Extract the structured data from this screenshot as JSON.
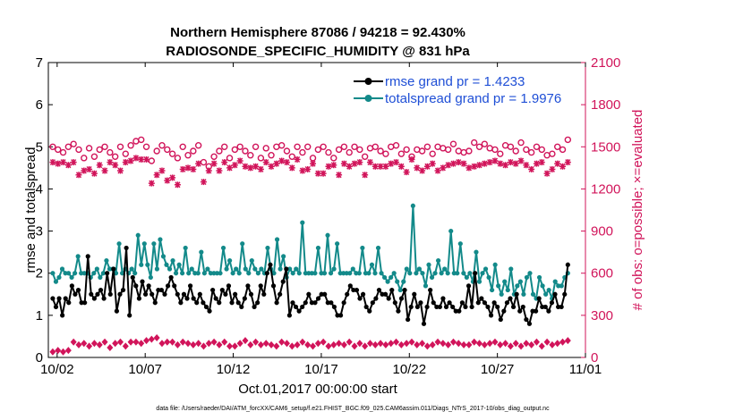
{
  "chart_data": {
    "type": "line",
    "title_line1": "Northern Hemisphere 87086 / 94218 = 92.430%",
    "title_line2": "RADIOSONDE_SPECIFIC_HUMIDITY @ 831 hPa",
    "ylabel_left": "rmse and totalspread",
    "ylabel_right": "# of obs: o=possible; ×=evaluated",
    "xlabel": "Oct.01,2017 00:00:00 start",
    "footer": "data file: /Users/raeder/DAI/ATM_forcXX/CAM6_setup/f.e21.FHIST_BGC.f09_025.CAM6assim.011/Diags_NTrS_2017-10/obs_diag_output.nc",
    "xlim": [
      1.5,
      32
    ],
    "ylim_left": [
      0,
      7
    ],
    "ylim_right": [
      0,
      2100
    ],
    "x_tick_values": [
      2,
      7,
      12,
      17,
      22,
      27,
      32
    ],
    "x_tick_labels": [
      "10/02",
      "10/07",
      "10/12",
      "10/17",
      "10/22",
      "10/27",
      "11/01"
    ],
    "y_left_ticks": [
      "0",
      "1",
      "2",
      "3",
      "4",
      "5",
      "6",
      "7"
    ],
    "y_right_ticks": [
      "0",
      "300",
      "600",
      "900",
      "1200",
      "1500",
      "1800",
      "2100"
    ],
    "colors": {
      "rmse": "#000000",
      "totalspread": "#138a8a",
      "obs": "#d1145a",
      "legend_text": "#1f4fd6",
      "axis": "#000000"
    },
    "series": [
      {
        "name": "rmse grand pr = 1.4233",
        "key": "rmse",
        "axis": "left",
        "values": [
          1.4,
          1.2,
          1.4,
          1.0,
          1.4,
          1.3,
          1.7,
          1.5,
          1.6,
          1.3,
          1.3,
          2.4,
          1.5,
          1.4,
          1.5,
          1.6,
          1.4,
          2.0,
          1.5,
          2.1,
          1.1,
          1.5,
          1.6,
          2.6,
          1.0,
          1.9,
          1.7,
          1.4,
          1.8,
          1.5,
          1.7,
          1.5,
          1.3,
          1.6,
          1.6,
          1.5,
          1.7,
          1.9,
          1.7,
          1.5,
          1.3,
          1.5,
          1.4,
          1.7,
          1.4,
          1.3,
          1.5,
          1.3,
          1.2,
          1.1,
          1.6,
          1.4,
          1.3,
          1.6,
          1.5,
          1.7,
          1.3,
          1.5,
          1.3,
          1.2,
          1.4,
          1.7,
          1.5,
          1.2,
          1.3,
          1.7,
          1.5,
          2.0,
          2.2,
          1.7,
          1.3,
          1.5,
          1.8,
          2.1,
          1.0,
          1.3,
          1.2,
          1.1,
          1.2,
          1.3,
          1.5,
          1.3,
          1.3,
          1.4,
          1.5,
          1.5,
          1.3,
          1.3,
          1.2,
          1.0,
          1.0,
          1.3,
          1.5,
          1.7,
          1.6,
          1.6,
          1.4,
          1.5,
          1.2,
          1.1,
          1.3,
          1.4,
          1.6,
          1.5,
          1.5,
          1.4,
          1.6,
          1.3,
          1.1,
          1.4,
          1.6,
          0.9,
          1.2,
          1.5,
          1.2,
          1.3,
          0.8,
          1.2,
          1.6,
          1.3,
          1.2,
          1.2,
          1.4,
          1.2,
          1.3,
          1.2,
          1.1,
          1.1,
          1.3,
          1.2,
          1.7,
          1.2,
          2.0,
          1.3,
          1.4,
          1.3,
          1.2,
          1.0,
          1.3,
          1.2,
          0.9,
          1.1,
          1.3,
          1.4,
          1.2,
          1.5,
          1.1,
          1.2,
          0.9,
          0.8,
          1.1,
          1.1,
          1.4,
          1.2,
          1.2,
          1.1,
          1.3,
          1.5,
          1.2,
          1.2,
          1.5,
          2.2
        ]
      },
      {
        "name": "totalspread grand pr = 1.9976",
        "key": "totalspread",
        "axis": "left",
        "values": [
          2.0,
          1.8,
          1.9,
          2.1,
          2.0,
          2.0,
          1.9,
          2.0,
          2.4,
          2.0,
          2.0,
          2.0,
          1.9,
          2.0,
          2.1,
          1.9,
          2.0,
          2.3,
          2.1,
          2.1,
          2.0,
          2.7,
          2.0,
          2.1,
          2.0,
          2.1,
          2.0,
          2.9,
          2.2,
          2.7,
          2.2,
          1.9,
          2.7,
          2.1,
          2.8,
          2.4,
          2.2,
          2.1,
          2.3,
          2.0,
          2.2,
          2.0,
          2.6,
          2.0,
          2.1,
          2.0,
          2.0,
          2.5,
          2.0,
          2.1,
          2.0,
          2.0,
          2.0,
          2.0,
          2.6,
          2.1,
          2.3,
          2.0,
          2.1,
          2.0,
          2.7,
          2.1,
          2.0,
          2.3,
          2.1,
          2.0,
          2.1,
          2.0,
          2.6,
          2.1,
          2.0,
          2.8,
          2.1,
          2.4,
          1.9,
          2.1,
          2.0,
          2.1,
          2.0,
          3.2,
          2.0,
          2.0,
          2.0,
          2.0,
          2.6,
          2.0,
          2.0,
          2.9,
          2.0,
          2.1,
          2.7,
          2.0,
          2.0,
          2.0,
          2.0,
          2.1,
          2.0,
          2.0,
          2.6,
          2.0,
          2.0,
          2.2,
          2.0,
          2.6,
          2.0,
          1.9,
          1.8,
          1.9,
          2.0,
          1.8,
          1.6,
          1.8,
          2.1,
          2.0,
          3.6,
          2.0,
          2.1,
          2.0,
          1.7,
          2.2,
          1.9,
          2.0,
          2.3,
          2.0,
          2.1,
          2.0,
          3.0,
          2.0,
          2.0,
          2.7,
          2.0,
          1.9,
          2.0,
          1.8,
          2.5,
          1.8,
          2.0,
          2.1,
          1.9,
          1.6,
          2.2,
          1.7,
          1.5,
          1.8,
          1.6,
          2.1,
          1.5,
          1.7,
          1.8,
          1.5,
          1.9,
          2.0,
          1.5,
          1.4,
          1.9,
          1.7,
          1.5,
          1.6,
          1.4,
          1.8,
          1.7,
          1.7,
          1.9,
          2.0
        ]
      },
      {
        "name": "possible observations",
        "key": "possible",
        "axis": "right",
        "marker": "o",
        "values": [
          1500,
          1480,
          1460,
          1500,
          1520,
          1480,
          1420,
          1490,
          1430,
          1480,
          1500,
          1460,
          1430,
          1500,
          1450,
          1510,
          1540,
          1550,
          1500,
          1400,
          1470,
          1510,
          1480,
          1450,
          1420,
          1500,
          1440,
          1470,
          1510,
          1390,
          1360,
          1430,
          1470,
          1500,
          1420,
          1480,
          1500,
          1470,
          1440,
          1500,
          1420,
          1490,
          1440,
          1500,
          1510,
          1470,
          1430,
          1500,
          1460,
          1500,
          1420,
          1480,
          1500,
          1460,
          1420,
          1480,
          1500,
          1460,
          1500,
          1480,
          1430,
          1490,
          1500,
          1470,
          1450,
          1500,
          1510,
          1450,
          1480,
          1430,
          1480,
          1470,
          1500,
          1450,
          1500,
          1490,
          1480,
          1520,
          1470,
          1460,
          1470,
          1530,
          1500,
          1520,
          1490,
          1480,
          1450,
          1510,
          1500,
          1470,
          1530,
          1480,
          1460,
          1500,
          1480,
          1440,
          1450,
          1500,
          1480,
          1550
        ]
      },
      {
        "name": "evaluated observations",
        "key": "evaluated",
        "axis": "right",
        "marker": "x",
        "values": [
          1390,
          1380,
          1390,
          1370,
          1390,
          1300,
          1330,
          1340,
          1310,
          1370,
          1330,
          1390,
          1370,
          1330,
          1390,
          1400,
          1420,
          1410,
          1410,
          1240,
          1300,
          1330,
          1260,
          1280,
          1230,
          1340,
          1350,
          1340,
          1380,
          1250,
          1330,
          1380,
          1330,
          1390,
          1350,
          1370,
          1400,
          1360,
          1350,
          1360,
          1340,
          1390,
          1360,
          1380,
          1400,
          1390,
          1350,
          1410,
          1330,
          1340,
          1380,
          1310,
          1310,
          1360,
          1370,
          1300,
          1380,
          1360,
          1380,
          1390,
          1300,
          1390,
          1360,
          1360,
          1360,
          1380,
          1390,
          1360,
          1320,
          1410,
          1350,
          1330,
          1360,
          1380,
          1330,
          1350,
          1370,
          1380,
          1390,
          1380,
          1350,
          1360,
          1370,
          1380,
          1390,
          1400,
          1380,
          1370,
          1390,
          1380,
          1400,
          1370,
          1340,
          1380,
          1390,
          1310,
          1340,
          1380,
          1360,
          1390
        ]
      },
      {
        "name": "rejected observations",
        "key": "rejected",
        "axis": "right",
        "marker": "diamond",
        "values": [
          40,
          50,
          40,
          50,
          110,
          90,
          100,
          80,
          100,
          90,
          110,
          70,
          100,
          110,
          80,
          110,
          110,
          100,
          120,
          130,
          140,
          100,
          110,
          110,
          90,
          110,
          100,
          90,
          100,
          80,
          100,
          110,
          90,
          110,
          80,
          80,
          100,
          120,
          90,
          110,
          90,
          100,
          90,
          80,
          110,
          100,
          80,
          90,
          110,
          90,
          80,
          100,
          110,
          80,
          90,
          100,
          90,
          110,
          80,
          100,
          80,
          100,
          90,
          100,
          90,
          100,
          110,
          90,
          100,
          110,
          90,
          100,
          80,
          90,
          110,
          100,
          90,
          110,
          100,
          90,
          90,
          110,
          100,
          90,
          100,
          110,
          90,
          100,
          80,
          100,
          80,
          100,
          90,
          110,
          80,
          110,
          90,
          100,
          110,
          120
        ]
      }
    ],
    "legend": [
      {
        "label": "rmse grand pr = 1.4233",
        "series": "rmse"
      },
      {
        "label": "totalspread grand pr = 1.9976",
        "series": "totalspread"
      }
    ]
  }
}
